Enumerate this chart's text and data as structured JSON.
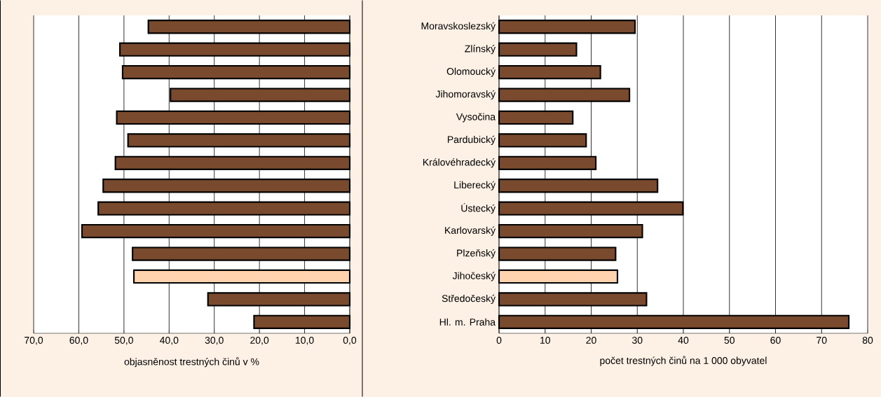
{
  "chart_data": [
    {
      "type": "bar",
      "orientation": "horizontal",
      "categories": [
        null,
        null,
        null,
        null,
        null,
        null,
        null,
        null,
        null,
        null,
        null,
        null,
        null,
        null
      ],
      "values": [
        44.6,
        50.9,
        50.3,
        39.7,
        51.6,
        49.1,
        51.9,
        54.6,
        55.7,
        59.3,
        48.1,
        47.8,
        31.4,
        21.2
      ],
      "colors": [
        "#7a4a2e",
        "#7a4a2e",
        "#7a4a2e",
        "#7a4a2e",
        "#7a4a2e",
        "#7a4a2e",
        "#7a4a2e",
        "#7a4a2e",
        "#7a4a2e",
        "#7a4a2e",
        "#7a4a2e",
        "#ffd3ad",
        "#7a4a2e",
        "#7a4a2e"
      ],
      "xlim": [
        70,
        0
      ],
      "xticks": [
        {
          "value": 70,
          "label": "70,0"
        },
        {
          "value": 60,
          "label": "60,0"
        },
        {
          "value": 50,
          "label": "50,0"
        },
        {
          "value": 40,
          "label": "40,0"
        },
        {
          "value": 30,
          "label": "30,0"
        },
        {
          "value": 20,
          "label": "20,0"
        },
        {
          "value": 10,
          "label": "10,0"
        },
        {
          "value": 0,
          "label": "0,0"
        }
      ],
      "xlabel": "objasněnost trestných činů v %",
      "grid": "x",
      "tick_labels": "x"
    },
    {
      "type": "bar",
      "orientation": "horizontal",
      "categories": [
        "Moravskoslezský",
        "Zlínský",
        "Olomoucký",
        "Jihomoravský",
        "Vysočina",
        "Pardubický",
        "Královéhradecký",
        "Liberecký",
        "Ústecký",
        "Karlovarský",
        "Plzeňský",
        "Jihočeský",
        "Středočeský",
        "Hl. m. Praha"
      ],
      "values": [
        29.5,
        16.8,
        22.0,
        28.3,
        16.0,
        18.9,
        21.0,
        34.4,
        39.9,
        31.1,
        25.3,
        25.7,
        32.0,
        75.9
      ],
      "colors": [
        "#7a4a2e",
        "#7a4a2e",
        "#7a4a2e",
        "#7a4a2e",
        "#7a4a2e",
        "#7a4a2e",
        "#7a4a2e",
        "#7a4a2e",
        "#7a4a2e",
        "#7a4a2e",
        "#7a4a2e",
        "#ffd3ad",
        "#7a4a2e",
        "#7a4a2e"
      ],
      "xlim": [
        0,
        80
      ],
      "xticks": [
        0,
        10,
        20,
        30,
        40,
        50,
        60,
        70,
        80
      ],
      "xlabel": "počet trestných činů na 1 000 obyvatel",
      "grid": "x"
    }
  ]
}
